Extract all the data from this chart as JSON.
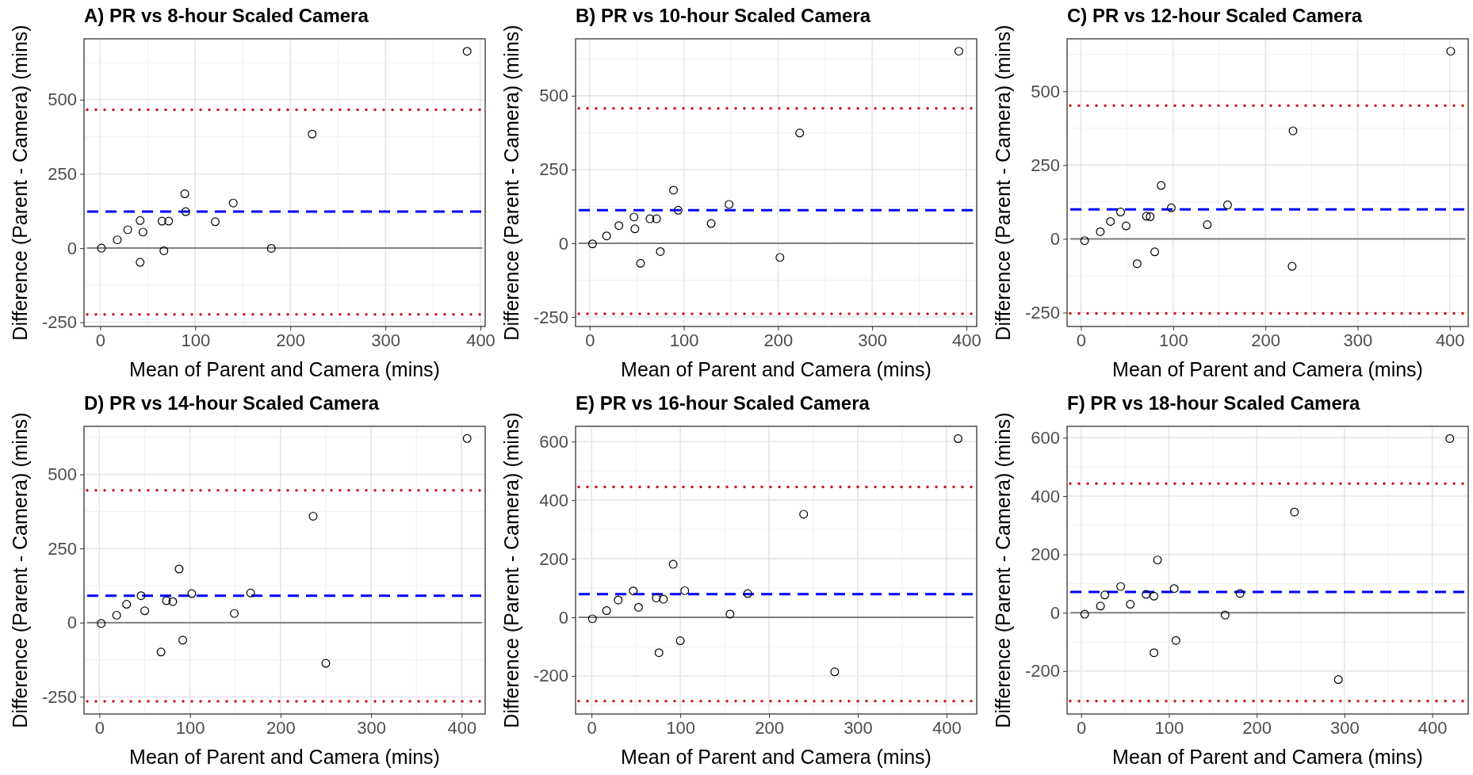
{
  "chart_data": [
    {
      "type": "scatter",
      "title": "A) PR vs 8-hour Scaled Camera",
      "xlabel": "Mean of Parent and Camera (mins)",
      "ylabel": "Difference (Parent - Camera) (mins)",
      "color": "#000000",
      "marker": "circle",
      "grid": true,
      "x": [
        1.3,
        18,
        29,
        42,
        45,
        42,
        65,
        72,
        67,
        89,
        90,
        121,
        140,
        180,
        223,
        386
      ],
      "values": [
        0,
        28,
        62,
        93,
        54,
        -48,
        91,
        91,
        -9,
        183,
        123,
        89,
        152,
        -1,
        384,
        663
      ],
      "xlim": [
        -17,
        405
      ],
      "ylim": [
        -264,
        705
      ],
      "xticks": [
        0,
        100,
        200,
        300,
        400
      ],
      "yticks": [
        -250,
        0,
        250,
        500
      ],
      "ref_lines": [
        {
          "axis": "y",
          "value": 0,
          "color": "#7f7f7f",
          "line_style": "solid"
        },
        {
          "axis": "y",
          "value": 123,
          "color": "#0000ff",
          "line_style": "dashed"
        },
        {
          "axis": "y",
          "value": 466,
          "color": "#cc1111",
          "line_style": "dotted"
        },
        {
          "axis": "y",
          "value": -223,
          "color": "#cc1111",
          "line_style": "dotted"
        }
      ]
    },
    {
      "type": "scatter",
      "title": "B) PR vs 10-hour Scaled Camera",
      "xlabel": "Mean of Parent and Camera (mins)",
      "ylabel": "Difference (Parent - Camera) (mins)",
      "color": "#000000",
      "marker": "circle",
      "grid": true,
      "x": [
        3,
        18,
        31,
        47,
        48,
        54,
        64,
        71,
        75,
        89,
        94,
        129,
        148,
        202,
        223,
        392
      ],
      "values": [
        -2,
        25,
        60,
        89,
        49,
        -68,
        83,
        83,
        -28,
        180,
        112,
        67,
        132,
        -48,
        374,
        651
      ],
      "xlim": [
        -15,
        411
      ],
      "ylim": [
        -282,
        693
      ],
      "xticks": [
        0,
        100,
        200,
        300,
        400
      ],
      "yticks": [
        -250,
        0,
        250,
        500
      ],
      "ref_lines": [
        {
          "axis": "y",
          "value": 0,
          "color": "#7f7f7f",
          "line_style": "solid"
        },
        {
          "axis": "y",
          "value": 112,
          "color": "#0000ff",
          "line_style": "dashed"
        },
        {
          "axis": "y",
          "value": 457,
          "color": "#cc1111",
          "line_style": "dotted"
        },
        {
          "axis": "y",
          "value": -239,
          "color": "#cc1111",
          "line_style": "dotted"
        }
      ]
    },
    {
      "type": "scatter",
      "title": "C) PR vs 12-hour Scaled Camera",
      "xlabel": "Mean of Parent and Camera (mins)",
      "ylabel": "Difference (Parent - Camera) (mins)",
      "color": "#000000",
      "marker": "circle",
      "grid": true,
      "x": [
        4,
        21,
        32,
        43,
        49,
        61,
        71,
        75,
        80,
        87,
        98,
        137,
        159,
        229,
        230,
        401
      ],
      "values": [
        -6,
        24,
        59,
        91,
        44,
        -84,
        77,
        75,
        -44,
        181,
        105,
        48,
        115,
        -93,
        366,
        636
      ],
      "xlim": [
        -15,
        420
      ],
      "ylim": [
        -297,
        678
      ],
      "xticks": [
        0,
        100,
        200,
        300,
        400
      ],
      "yticks": [
        -250,
        0,
        250,
        500
      ],
      "ref_lines": [
        {
          "axis": "y",
          "value": 0,
          "color": "#7f7f7f",
          "line_style": "solid"
        },
        {
          "axis": "y",
          "value": 100,
          "color": "#0000ff",
          "line_style": "dashed"
        },
        {
          "axis": "y",
          "value": 452,
          "color": "#cc1111",
          "line_style": "dotted"
        },
        {
          "axis": "y",
          "value": -253,
          "color": "#cc1111",
          "line_style": "dotted"
        }
      ]
    },
    {
      "type": "scatter",
      "title": "D) PR vs 14-hour Scaled Camera",
      "xlabel": "Mean of Parent and Camera (mins)",
      "ylabel": "Difference (Parent - Camera) (mins)",
      "color": "#000000",
      "marker": "circle",
      "grid": true,
      "x": [
        2,
        19,
        30,
        46,
        50,
        68,
        74,
        81,
        88,
        92,
        102,
        149,
        167,
        236,
        250,
        406
      ],
      "values": [
        -3,
        25,
        62,
        91,
        40,
        -99,
        74,
        71,
        181,
        -59,
        98,
        31,
        100,
        359,
        -137,
        621
      ],
      "xlim": [
        -17,
        426
      ],
      "ylim": [
        -308,
        662
      ],
      "xticks": [
        0,
        100,
        200,
        300,
        400
      ],
      "yticks": [
        -250,
        0,
        250,
        500
      ],
      "ref_lines": [
        {
          "axis": "y",
          "value": 0,
          "color": "#7f7f7f",
          "line_style": "solid"
        },
        {
          "axis": "y",
          "value": 91,
          "color": "#0000ff",
          "line_style": "dashed"
        },
        {
          "axis": "y",
          "value": 446,
          "color": "#cc1111",
          "line_style": "dotted"
        },
        {
          "axis": "y",
          "value": -265,
          "color": "#cc1111",
          "line_style": "dotted"
        }
      ]
    },
    {
      "type": "scatter",
      "title": "E) PR vs 16-hour Scaled Camera",
      "xlabel": "Mean of Parent and Camera (mins)",
      "ylabel": "Difference (Parent - Camera) (mins)",
      "color": "#000000",
      "marker": "circle",
      "grid": true,
      "x": [
        1,
        17,
        30,
        47,
        53,
        76,
        73,
        81,
        92,
        100,
        105,
        156,
        176,
        239,
        274,
        413
      ],
      "values": [
        -5,
        23,
        59,
        90,
        34,
        -121,
        66,
        62,
        181,
        -80,
        91,
        11,
        81,
        352,
        -186,
        610
      ],
      "xlim": [
        -18,
        434
      ],
      "ylim": [
        -330,
        652
      ],
      "xticks": [
        0,
        100,
        200,
        300,
        400
      ],
      "yticks": [
        -200,
        0,
        200,
        400,
        600
      ],
      "ref_lines": [
        {
          "axis": "y",
          "value": 0,
          "color": "#7f7f7f",
          "line_style": "solid"
        },
        {
          "axis": "y",
          "value": 79,
          "color": "#0000ff",
          "line_style": "dashed"
        },
        {
          "axis": "y",
          "value": 445,
          "color": "#cc1111",
          "line_style": "dotted"
        },
        {
          "axis": "y",
          "value": -286,
          "color": "#cc1111",
          "line_style": "dotted"
        }
      ]
    },
    {
      "type": "scatter",
      "title": "F) PR vs 18-hour Scaled Camera",
      "xlabel": "Mean of Parent and Camera (mins)",
      "ylabel": "Difference (Parent - Camera) (mins)",
      "color": "#000000",
      "marker": "circle",
      "grid": true,
      "x": [
        4,
        22,
        27,
        45,
        56,
        74,
        83,
        83,
        87,
        106,
        108,
        164,
        181,
        243,
        293,
        420
      ],
      "values": [
        -5,
        23,
        61,
        90,
        29,
        63,
        57,
        -137,
        181,
        83,
        -95,
        -8,
        66,
        345,
        -229,
        597
      ],
      "xlim": [
        -16,
        441
      ],
      "ylim": [
        -347,
        639
      ],
      "xticks": [
        0,
        100,
        200,
        300,
        400
      ],
      "yticks": [
        -200,
        0,
        200,
        400,
        600
      ],
      "ref_lines": [
        {
          "axis": "y",
          "value": 0,
          "color": "#7f7f7f",
          "line_style": "solid"
        },
        {
          "axis": "y",
          "value": 71,
          "color": "#0000ff",
          "line_style": "dashed"
        },
        {
          "axis": "y",
          "value": 443,
          "color": "#cc1111",
          "line_style": "dotted"
        },
        {
          "axis": "y",
          "value": -303,
          "color": "#cc1111",
          "line_style": "dotted"
        }
      ]
    }
  ]
}
